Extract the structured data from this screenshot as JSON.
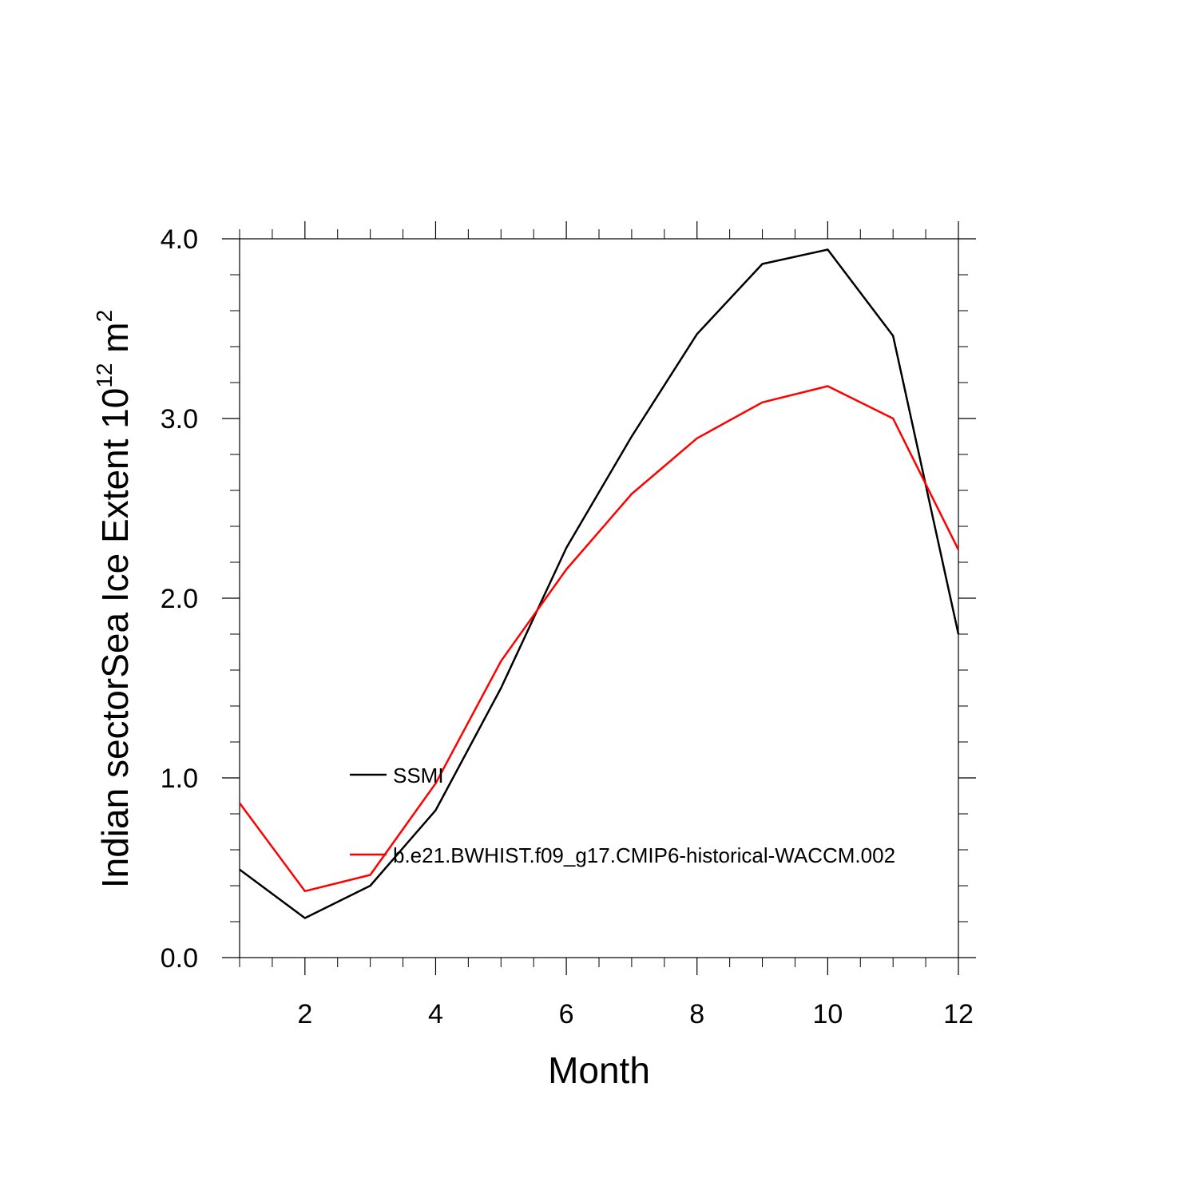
{
  "chart_data": {
    "type": "line",
    "title": "",
    "xlabel": "Month",
    "ylabel_main": "Indian sectorSea Ice Extent 10",
    "ylabel_exp": "12",
    "ylabel_unit": " m",
    "ylabel_unit_exp": "2",
    "xlim": [
      1,
      12
    ],
    "ylim": [
      0,
      4
    ],
    "x_ticks": [
      2,
      4,
      6,
      8,
      10,
      12
    ],
    "x_tick_labels": [
      "2",
      "4",
      "6",
      "8",
      "10",
      "12"
    ],
    "y_ticks": [
      0,
      1,
      2,
      3,
      4
    ],
    "y_tick_labels": [
      "0.0",
      "1.0",
      "2.0",
      "3.0",
      "4.0"
    ],
    "x": [
      1,
      2,
      3,
      4,
      5,
      6,
      7,
      8,
      9,
      10,
      11,
      12
    ],
    "grid": false,
    "legend_position": "center-left",
    "series": [
      {
        "name": "SSMI",
        "color": "#000000",
        "values": [
          0.49,
          0.22,
          0.4,
          0.82,
          1.5,
          2.28,
          2.9,
          3.47,
          3.86,
          3.94,
          3.46,
          1.8
        ]
      },
      {
        "name": "b.e21.BWHIST.f09_g17.CMIP6-historical-WACCM.002",
        "color": "#ff0000",
        "values": [
          0.86,
          0.37,
          0.46,
          0.97,
          1.65,
          2.16,
          2.58,
          2.89,
          3.09,
          3.18,
          3.0,
          2.27
        ]
      }
    ]
  }
}
